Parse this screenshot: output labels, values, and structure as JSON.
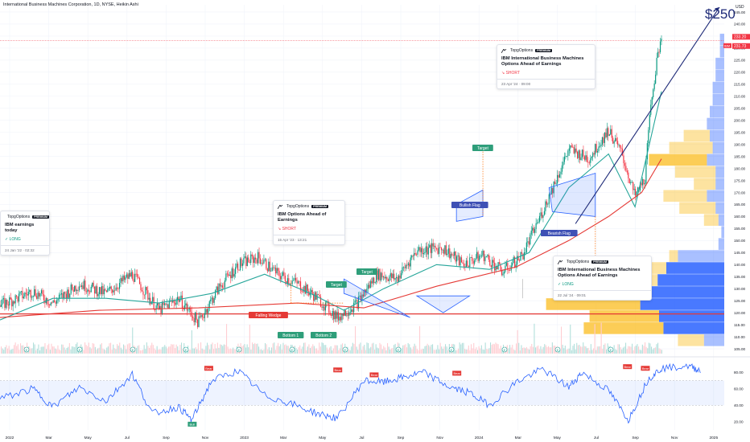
{
  "header": {
    "title": "International Business Machines Corporation, 1D, NYSE, Heikin Ashi"
  },
  "annotations": {
    "big_target": "$250",
    "labels": {
      "falling_wedge": "Falling Wedge",
      "bottom1": "Bottom 1",
      "bottom2": "Bottom 2",
      "target": "Target",
      "bullish_flag": "Bullish Flag",
      "bearish_flag": "Bearish Flag"
    },
    "bull_marker": "Bull",
    "bear_marker": "Bear",
    "earnings_marker": "E"
  },
  "cards": [
    {
      "author": "TopgOptions",
      "badge": "PREMIUM",
      "title": "IBM earnings today",
      "direction": "LONG",
      "time": "24 Jan '22 · 02:32"
    },
    {
      "author": "TopgOptions",
      "badge": "PREMIUM",
      "title": "IBM Options Ahead of Earnings",
      "direction": "SHORT",
      "time": "15 Apr '23 · 13:21"
    },
    {
      "author": "TopgOptions",
      "badge": "PREMIUM",
      "title": "IBM International Business Machines Options Ahead of Earnings",
      "direction": "SHORT",
      "time": "23 Apr '24 · 09:00"
    },
    {
      "author": "TopgOptions",
      "badge": "PREMIUM",
      "title": "IBM International Business Machines Options Ahead of Earnings",
      "direction": "LONG",
      "time": "22 Jul '24 · 09:01"
    }
  ],
  "price_scale": {
    "currency": "USD",
    "last_price": "233.20",
    "ma_value": "231.73",
    "ticker_tag": "IBM"
  },
  "colors": {
    "up": "#089981",
    "down": "#f23645",
    "ma_fast": "#26a69a",
    "ma_slow": "#e53935",
    "trend": "#1e2a78",
    "rsi": "#2962ff",
    "vp_up": "#fbc02d",
    "vp_down": "#2962ff",
    "label_green": "#2e9e7a",
    "label_red": "#e53935",
    "label_blue": "#3f51b5"
  },
  "chart_data": [
    {
      "type": "candlestick",
      "title": "International Business Machines Corporation, 1D, NYSE, Heikin Ashi",
      "x_tick_labels": [
        "2022",
        "Mar",
        "May",
        "Jul",
        "Sep",
        "Nov",
        "2023",
        "Mar",
        "May",
        "Jul",
        "Sep",
        "Nov",
        "2024",
        "Mar",
        "May",
        "Jul",
        "Sep",
        "Nov",
        "2025"
      ],
      "y_ticks": [
        105,
        110,
        115,
        120,
        125,
        130,
        135,
        140,
        145,
        150,
        155,
        160,
        165,
        170,
        175,
        180,
        185,
        190,
        195,
        200,
        205,
        210,
        215,
        220,
        225,
        230,
        235,
        240,
        245
      ],
      "ylim": [
        103,
        248
      ],
      "price_path": [
        {
          "t": 0.0,
          "v": 123
        },
        {
          "t": 0.05,
          "v": 129
        },
        {
          "t": 0.08,
          "v": 124
        },
        {
          "t": 0.12,
          "v": 132
        },
        {
          "t": 0.16,
          "v": 128
        },
        {
          "t": 0.2,
          "v": 136
        },
        {
          "t": 0.24,
          "v": 121
        },
        {
          "t": 0.27,
          "v": 126
        },
        {
          "t": 0.3,
          "v": 116
        },
        {
          "t": 0.33,
          "v": 130
        },
        {
          "t": 0.36,
          "v": 140
        },
        {
          "t": 0.39,
          "v": 143
        },
        {
          "t": 0.42,
          "v": 136
        },
        {
          "t": 0.45,
          "v": 132
        },
        {
          "t": 0.48,
          "v": 126
        },
        {
          "t": 0.51,
          "v": 118
        },
        {
          "t": 0.54,
          "v": 124
        },
        {
          "t": 0.57,
          "v": 136
        },
        {
          "t": 0.6,
          "v": 134
        },
        {
          "t": 0.63,
          "v": 146
        },
        {
          "t": 0.67,
          "v": 147
        },
        {
          "t": 0.7,
          "v": 140
        },
        {
          "t": 0.73,
          "v": 144
        },
        {
          "t": 0.76,
          "v": 137
        },
        {
          "t": 0.79,
          "v": 144
        },
        {
          "t": 0.82,
          "v": 162
        },
        {
          "t": 0.86,
          "v": 188
        },
        {
          "t": 0.89,
          "v": 184
        },
        {
          "t": 0.92,
          "v": 196
        },
        {
          "t": 0.94,
          "v": 186
        },
        {
          "t": 0.96,
          "v": 168
        },
        {
          "t": 0.975,
          "v": 176
        },
        {
          "t": 0.985,
          "v": 210
        },
        {
          "t": 1.0,
          "v": 236
        }
      ],
      "moving_averages": [
        {
          "name": "fast",
          "color": "#26a69a",
          "points": [
            [
              0.0,
              117
            ],
            [
              0.08,
              126
            ],
            [
              0.16,
              126
            ],
            [
              0.24,
              124
            ],
            [
              0.32,
              128
            ],
            [
              0.4,
              136
            ],
            [
              0.47,
              128
            ],
            [
              0.52,
              121
            ],
            [
              0.58,
              130
            ],
            [
              0.66,
              140
            ],
            [
              0.74,
              138
            ],
            [
              0.8,
              145
            ],
            [
              0.86,
              172
            ],
            [
              0.92,
              186
            ],
            [
              0.96,
              164
            ],
            [
              1.0,
              212
            ]
          ]
        },
        {
          "name": "slow",
          "color": "#e53935",
          "points": [
            [
              0.0,
              118
            ],
            [
              0.15,
              121
            ],
            [
              0.3,
              122
            ],
            [
              0.45,
              124
            ],
            [
              0.55,
              122
            ],
            [
              0.66,
              131
            ],
            [
              0.78,
              139
            ],
            [
              0.86,
              150
            ],
            [
              0.92,
              160
            ],
            [
              0.97,
              170
            ],
            [
              1.0,
              184
            ]
          ]
        }
      ]
    },
    {
      "type": "line",
      "title": "RSI",
      "y_ticks": [
        20,
        40,
        60,
        80
      ],
      "ylim": [
        10,
        95
      ],
      "bands": [
        40,
        70
      ],
      "points": [
        [
          0.0,
          48
        ],
        [
          0.05,
          60
        ],
        [
          0.08,
          38
        ],
        [
          0.12,
          62
        ],
        [
          0.16,
          45
        ],
        [
          0.2,
          78
        ],
        [
          0.23,
          30
        ],
        [
          0.27,
          38
        ],
        [
          0.29,
          22
        ],
        [
          0.32,
          70
        ],
        [
          0.36,
          82
        ],
        [
          0.4,
          52
        ],
        [
          0.44,
          42
        ],
        [
          0.48,
          30
        ],
        [
          0.51,
          24
        ],
        [
          0.55,
          70
        ],
        [
          0.58,
          68
        ],
        [
          0.61,
          74
        ],
        [
          0.64,
          80
        ],
        [
          0.68,
          62
        ],
        [
          0.71,
          55
        ],
        [
          0.74,
          40
        ],
        [
          0.78,
          68
        ],
        [
          0.82,
          84
        ],
        [
          0.86,
          62
        ],
        [
          0.88,
          80
        ],
        [
          0.92,
          58
        ],
        [
          0.95,
          22
        ],
        [
          0.98,
          72
        ],
        [
          1.0,
          85
        ],
        [
          1.04,
          88
        ],
        [
          1.06,
          82
        ]
      ]
    },
    {
      "type": "bar",
      "title": "Volume profile",
      "price_bins": [
        106,
        111,
        116,
        121,
        126,
        131,
        136,
        141,
        146,
        151,
        156,
        161,
        166,
        171,
        176,
        181,
        186,
        191,
        196,
        201,
        206,
        211,
        216,
        221,
        226,
        231
      ],
      "up_share": [
        0.18,
        0.55,
        0.48,
        0.65,
        0.52,
        0.18,
        0.14,
        0.06,
        0,
        0,
        0.1,
        0.25,
        0.3,
        0.15,
        0.28,
        0.4,
        0.3,
        0.18,
        0,
        0,
        0,
        0,
        0,
        0,
        0,
        0
      ],
      "down_share": [
        0.14,
        0.42,
        0.45,
        0.58,
        0.5,
        0.46,
        0.4,
        0.32,
        0.04,
        0.02,
        0.04,
        0.06,
        0.12,
        0.06,
        0.06,
        0.12,
        0.08,
        0.1,
        0.12,
        0.1,
        0.08,
        0.08,
        0.06,
        0.06,
        0.03,
        0.03
      ]
    }
  ]
}
